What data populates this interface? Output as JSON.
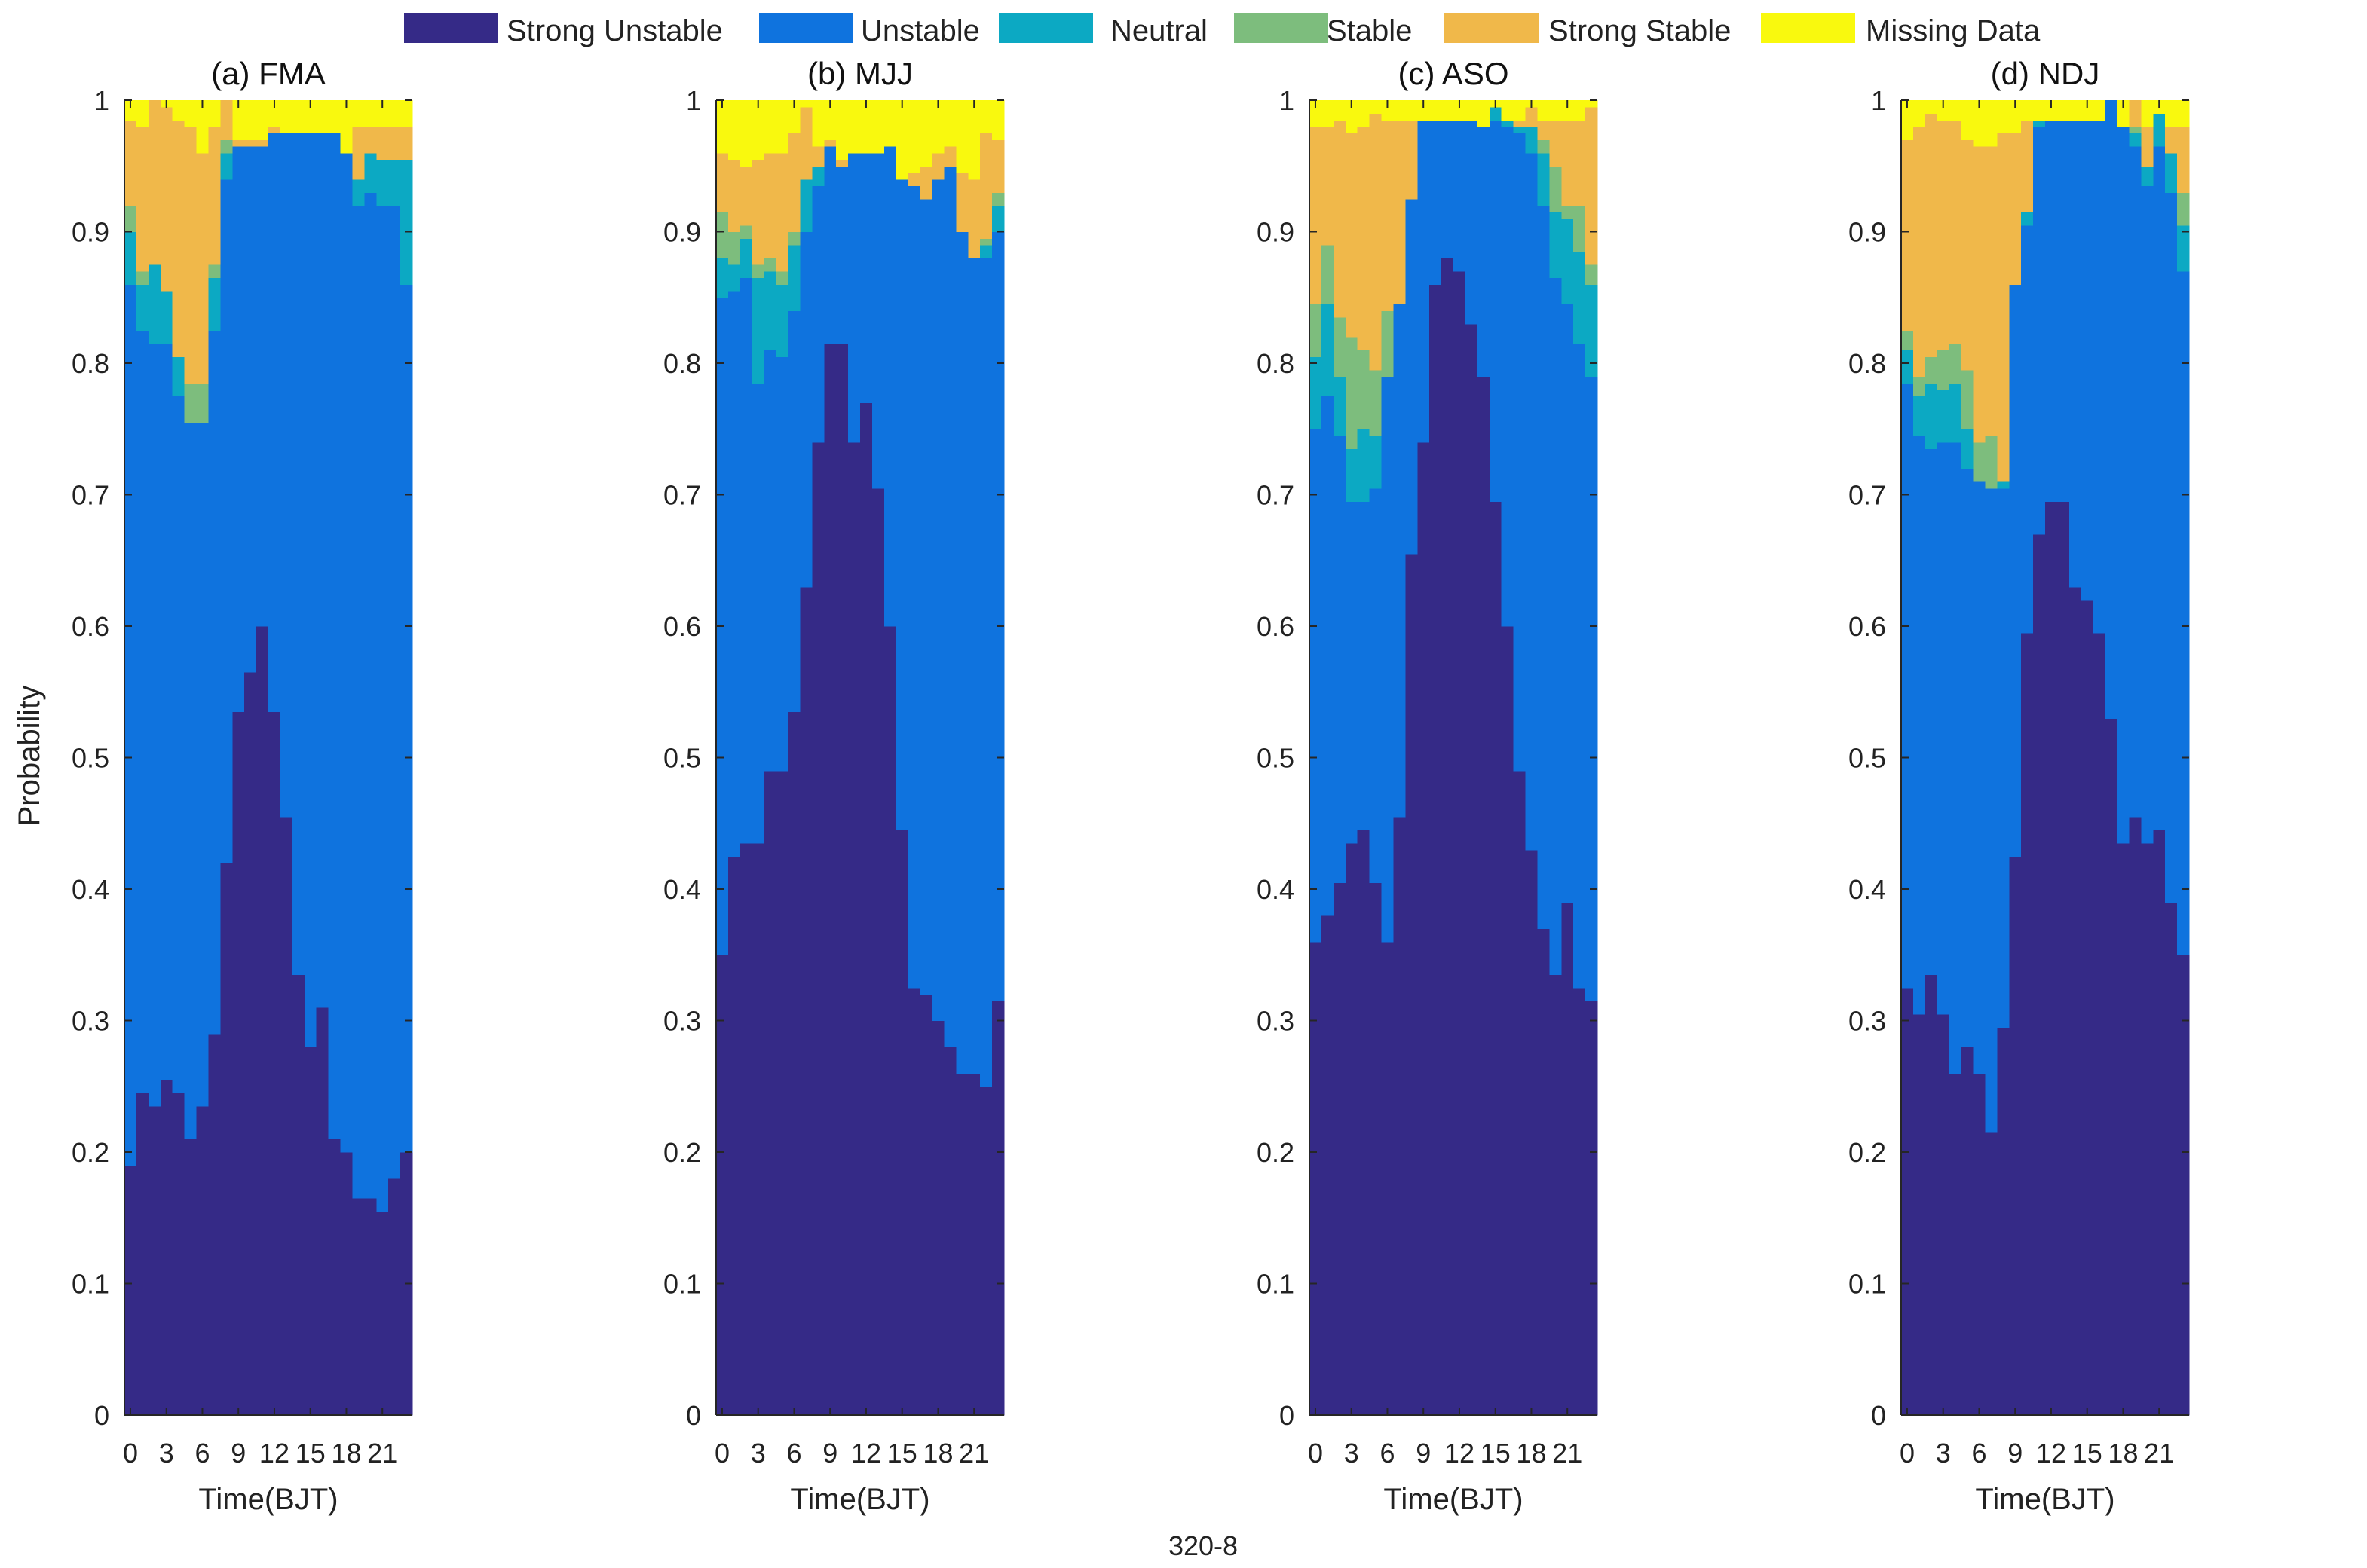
{
  "chart_data": {
    "type": "stacked-bar",
    "caption": "320-8",
    "ylabel": "Probability",
    "xlabel": "Time(BJT)",
    "ylim": [
      0,
      1
    ],
    "yticks": [
      0,
      0.1,
      0.2,
      0.3,
      0.4,
      0.5,
      0.6,
      0.7,
      0.8,
      0.9,
      1
    ],
    "ytick_labels": [
      "0",
      "0.1",
      "0.2",
      "0.3",
      "0.4",
      "0.5",
      "0.6",
      "0.7",
      "0.8",
      "0.9",
      "1"
    ],
    "xticks": [
      0,
      3,
      6,
      9,
      12,
      15,
      18,
      21
    ],
    "xtick_labels": [
      "0",
      "3",
      "6",
      "9",
      "12",
      "15",
      "18",
      "21"
    ],
    "hours": [
      0,
      1,
      2,
      3,
      4,
      5,
      6,
      7,
      8,
      9,
      10,
      11,
      12,
      13,
      14,
      15,
      16,
      17,
      18,
      19,
      20,
      21,
      22,
      23
    ],
    "categories": [
      {
        "name": "Strong Unstable",
        "color": "#352a87"
      },
      {
        "name": "Unstable",
        "color": "#0f73de"
      },
      {
        "name": "Neutral",
        "color": "#0ca9c3"
      },
      {
        "name": "Stable",
        "color": "#7dbd7d"
      },
      {
        "name": "Strong Stable",
        "color": "#f0b84a"
      },
      {
        "name": "Missing Data",
        "color": "#f9f90e"
      }
    ],
    "panels": [
      {
        "title": "(a) FMA",
        "series": [
          {
            "name": "Strong Unstable",
            "values": [
              0.19,
              0.245,
              0.235,
              0.255,
              0.245,
              0.21,
              0.235,
              0.29,
              0.42,
              0.535,
              0.565,
              0.6,
              0.535,
              0.455,
              0.335,
              0.28,
              0.31,
              0.21,
              0.2,
              0.165,
              0.165,
              0.155,
              0.18,
              0.2
            ]
          },
          {
            "name": "Unstable",
            "values": [
              0.67,
              0.58,
              0.58,
              0.56,
              0.53,
              0.545,
              0.52,
              0.535,
              0.52,
              0.43,
              0.4,
              0.365,
              0.44,
              0.52,
              0.64,
              0.695,
              0.665,
              0.765,
              0.76,
              0.755,
              0.765,
              0.765,
              0.74,
              0.66
            ]
          },
          {
            "name": "Neutral",
            "values": [
              0.04,
              0.035,
              0.06,
              0.04,
              0.03,
              0.0,
              0.0,
              0.04,
              0.02,
              0.0,
              0.0,
              0.0,
              0.0,
              0.0,
              0.0,
              0.0,
              0.0,
              0.0,
              0.0,
              0.02,
              0.03,
              0.035,
              0.035,
              0.095
            ]
          },
          {
            "name": "Stable",
            "values": [
              0.02,
              0.01,
              0.0,
              0.0,
              0.0,
              0.03,
              0.03,
              0.01,
              0.01,
              0.0,
              0.0,
              0.0,
              0.0,
              0.0,
              0.0,
              0.0,
              0.0,
              0.0,
              0.0,
              0.0,
              0.0,
              0.0,
              0.0,
              0.0
            ]
          },
          {
            "name": "Strong Stable",
            "values": [
              0.065,
              0.11,
              0.125,
              0.14,
              0.18,
              0.195,
              0.175,
              0.105,
              0.035,
              0.005,
              0.005,
              0.005,
              0.005,
              0.0,
              0.0,
              0.0,
              0.0,
              0.0,
              0.0,
              0.04,
              0.02,
              0.025,
              0.025,
              0.025
            ]
          },
          {
            "name": "Missing Data",
            "values": [
              0.015,
              0.02,
              0.0,
              0.005,
              0.015,
              0.02,
              0.04,
              0.02,
              0.015,
              0.03,
              0.03,
              0.03,
              0.02,
              0.025,
              0.025,
              0.025,
              0.025,
              0.025,
              0.04,
              0.02,
              0.02,
              0.02,
              0.02,
              0.02
            ]
          }
        ]
      },
      {
        "title": "(b) MJJ",
        "series": [
          {
            "name": "Strong Unstable",
            "values": [
              0.35,
              0.425,
              0.435,
              0.435,
              0.49,
              0.49,
              0.535,
              0.63,
              0.74,
              0.815,
              0.815,
              0.74,
              0.77,
              0.705,
              0.6,
              0.445,
              0.325,
              0.32,
              0.3,
              0.28,
              0.26,
              0.26,
              0.25,
              0.315
            ]
          },
          {
            "name": "Unstable",
            "values": [
              0.5,
              0.43,
              0.43,
              0.35,
              0.32,
              0.315,
              0.305,
              0.27,
              0.195,
              0.15,
              0.135,
              0.22,
              0.19,
              0.255,
              0.365,
              0.495,
              0.61,
              0.605,
              0.64,
              0.67,
              0.64,
              0.62,
              0.63,
              0.585
            ]
          },
          {
            "name": "Neutral",
            "values": [
              0.03,
              0.02,
              0.03,
              0.08,
              0.06,
              0.055,
              0.05,
              0.04,
              0.015,
              0.0,
              0.0,
              0.0,
              0.0,
              0.0,
              0.0,
              0.0,
              0.0,
              0.0,
              0.0,
              0.0,
              0.0,
              0.0,
              0.01,
              0.02
            ]
          },
          {
            "name": "Stable",
            "values": [
              0.035,
              0.025,
              0.01,
              0.01,
              0.01,
              0.01,
              0.01,
              0.0,
              0.0,
              0.0,
              0.0,
              0.0,
              0.0,
              0.0,
              0.0,
              0.0,
              0.0,
              0.0,
              0.0,
              0.0,
              0.0,
              0.0,
              0.005,
              0.01
            ]
          },
          {
            "name": "Strong Stable",
            "values": [
              0.045,
              0.055,
              0.045,
              0.08,
              0.08,
              0.09,
              0.075,
              0.055,
              0.015,
              0.005,
              0.005,
              0.0,
              0.0,
              0.0,
              0.0,
              0.0,
              0.01,
              0.025,
              0.02,
              0.015,
              0.045,
              0.06,
              0.08,
              0.04
            ]
          },
          {
            "name": "Missing Data",
            "values": [
              0.04,
              0.045,
              0.05,
              0.045,
              0.04,
              0.04,
              0.025,
              0.035,
              0.035,
              0.03,
              0.045,
              0.04,
              0.04,
              0.04,
              0.035,
              0.06,
              0.055,
              0.05,
              0.04,
              0.035,
              0.055,
              0.06,
              0.025,
              0.03
            ]
          }
        ]
      },
      {
        "title": "(c) ASO",
        "series": [
          {
            "name": "Strong Unstable",
            "values": [
              0.36,
              0.38,
              0.405,
              0.435,
              0.445,
              0.405,
              0.36,
              0.455,
              0.655,
              0.74,
              0.86,
              0.88,
              0.87,
              0.83,
              0.79,
              0.695,
              0.6,
              0.49,
              0.43,
              0.37,
              0.335,
              0.39,
              0.325,
              0.315
            ]
          },
          {
            "name": "Unstable",
            "values": [
              0.39,
              0.395,
              0.34,
              0.26,
              0.25,
              0.3,
              0.43,
              0.39,
              0.27,
              0.245,
              0.125,
              0.105,
              0.115,
              0.155,
              0.19,
              0.29,
              0.38,
              0.485,
              0.53,
              0.55,
              0.53,
              0.455,
              0.49,
              0.475
            ]
          },
          {
            "name": "Neutral",
            "values": [
              0.055,
              0.07,
              0.045,
              0.04,
              0.055,
              0.04,
              0.0,
              0.0,
              0.0,
              0.0,
              0.0,
              0.0,
              0.0,
              0.0,
              0.0,
              0.01,
              0.005,
              0.005,
              0.02,
              0.04,
              0.05,
              0.065,
              0.07,
              0.07
            ]
          },
          {
            "name": "Stable",
            "values": [
              0.04,
              0.045,
              0.045,
              0.085,
              0.06,
              0.05,
              0.05,
              0.0,
              0.0,
              0.0,
              0.0,
              0.0,
              0.0,
              0.0,
              0.0,
              0.0,
              0.0,
              0.0,
              0.0,
              0.01,
              0.035,
              0.01,
              0.035,
              0.015
            ]
          },
          {
            "name": "Strong Stable",
            "values": [
              0.135,
              0.09,
              0.15,
              0.155,
              0.17,
              0.195,
              0.145,
              0.14,
              0.06,
              0.0,
              0.0,
              0.0,
              0.0,
              0.0,
              0.0,
              0.0,
              0.0,
              0.005,
              0.015,
              0.015,
              0.035,
              0.065,
              0.065,
              0.12
            ]
          },
          {
            "name": "Missing Data",
            "values": [
              0.02,
              0.02,
              0.015,
              0.025,
              0.02,
              0.01,
              0.015,
              0.015,
              0.015,
              0.015,
              0.015,
              0.015,
              0.015,
              0.015,
              0.02,
              0.005,
              0.015,
              0.015,
              0.005,
              0.015,
              0.015,
              0.015,
              0.015,
              0.005
            ]
          }
        ]
      },
      {
        "title": "(d) NDJ",
        "series": [
          {
            "name": "Strong Unstable",
            "values": [
              0.325,
              0.305,
              0.335,
              0.305,
              0.26,
              0.28,
              0.26,
              0.215,
              0.295,
              0.425,
              0.595,
              0.67,
              0.695,
              0.695,
              0.63,
              0.62,
              0.595,
              0.53,
              0.435,
              0.455,
              0.435,
              0.445,
              0.39,
              0.35
            ]
          },
          {
            "name": "Unstable",
            "values": [
              0.46,
              0.44,
              0.4,
              0.435,
              0.48,
              0.44,
              0.45,
              0.49,
              0.41,
              0.435,
              0.31,
              0.31,
              0.29,
              0.29,
              0.355,
              0.365,
              0.39,
              0.47,
              0.545,
              0.51,
              0.5,
              0.52,
              0.54,
              0.52
            ]
          },
          {
            "name": "Neutral",
            "values": [
              0.025,
              0.03,
              0.05,
              0.04,
              0.045,
              0.03,
              0.0,
              0.0,
              0.005,
              0.0,
              0.01,
              0.005,
              0.0,
              0.0,
              0.0,
              0.0,
              0.0,
              0.0,
              0.0,
              0.01,
              0.015,
              0.025,
              0.03,
              0.035
            ]
          },
          {
            "name": "Stable",
            "values": [
              0.015,
              0.015,
              0.02,
              0.03,
              0.03,
              0.045,
              0.03,
              0.04,
              0.0,
              0.0,
              0.0,
              0.0,
              0.0,
              0.0,
              0.0,
              0.0,
              0.0,
              0.0,
              0.0,
              0.005,
              0.0,
              0.0,
              0.0,
              0.025
            ]
          },
          {
            "name": "Strong Stable",
            "values": [
              0.145,
              0.19,
              0.185,
              0.175,
              0.17,
              0.175,
              0.225,
              0.22,
              0.265,
              0.115,
              0.07,
              0.0,
              0.0,
              0.0,
              0.0,
              0.0,
              0.0,
              0.0,
              0.0,
              0.02,
              0.03,
              0.0,
              0.02,
              0.05
            ]
          },
          {
            "name": "Missing Data",
            "values": [
              0.03,
              0.02,
              0.01,
              0.015,
              0.015,
              0.03,
              0.035,
              0.035,
              0.025,
              0.025,
              0.015,
              0.015,
              0.015,
              0.015,
              0.015,
              0.015,
              0.015,
              0.0,
              0.02,
              0.0,
              0.02,
              0.01,
              0.02,
              0.02
            ]
          }
        ]
      }
    ]
  }
}
